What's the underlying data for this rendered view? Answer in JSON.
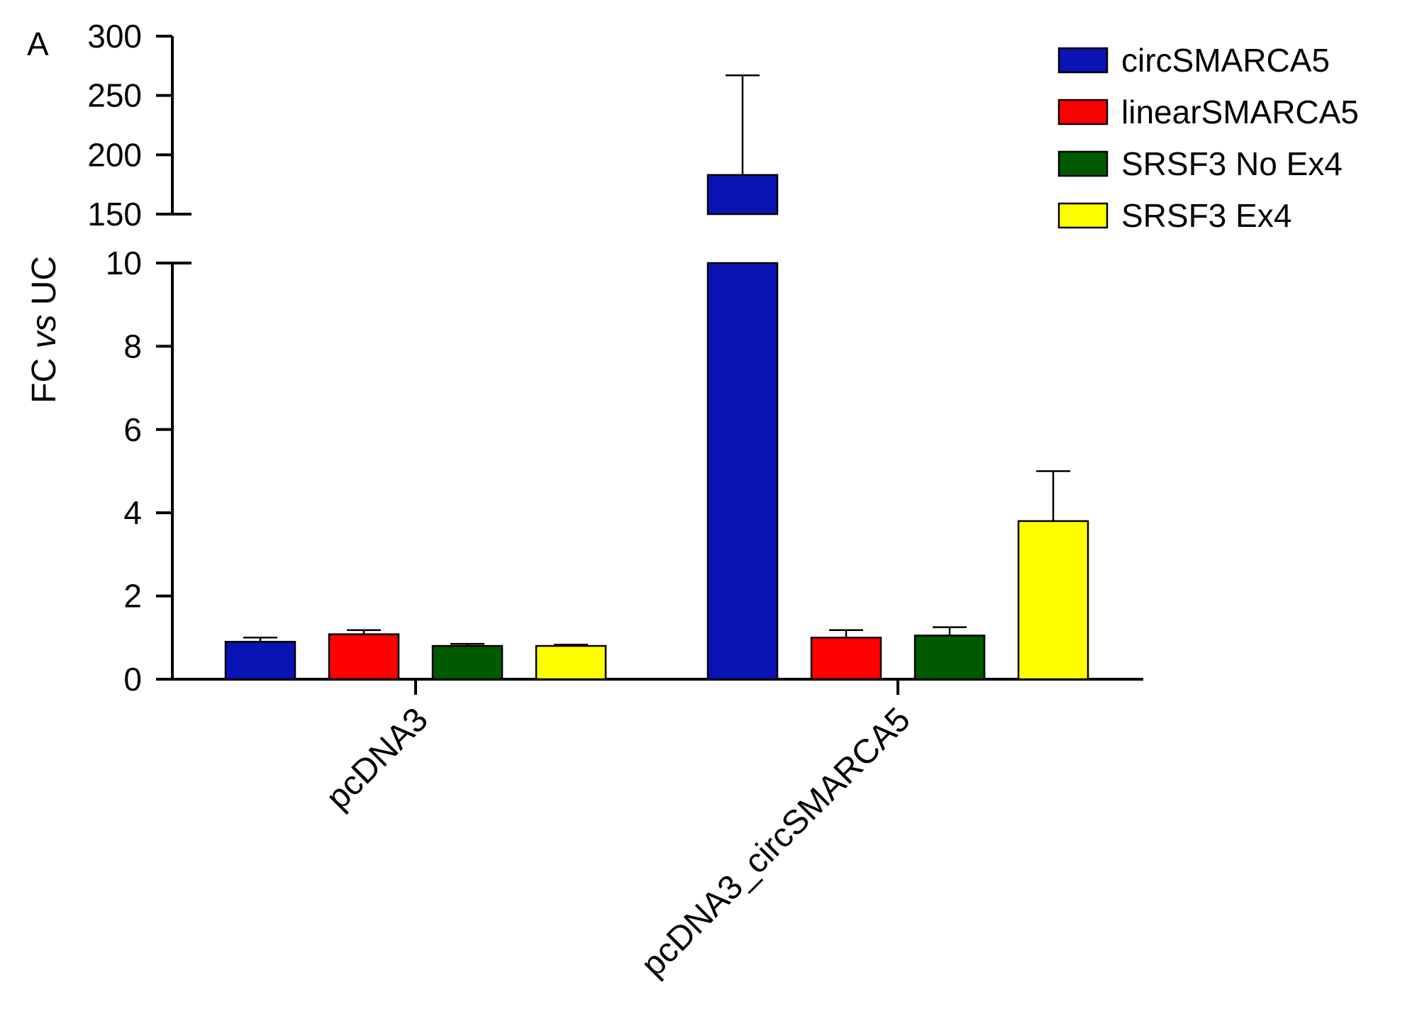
{
  "panel_label": "A",
  "colors": {
    "circSMARCA5": "#0a14b4",
    "linearSMARCA5": "#ff0000",
    "SRSF3 No Ex4": "#005a00",
    "SRSF3 Ex4": "#ffff00"
  },
  "chart_data": {
    "type": "bar",
    "title": "",
    "ylabel": "FC vs UC",
    "ylabel_parts": [
      "FC ",
      "vs",
      " UC"
    ],
    "xlabel": "",
    "categories": [
      "pcDNA3",
      "pcDNA3_circSMARCA5"
    ],
    "y_axis_break": {
      "lower_range": [
        0,
        10
      ],
      "lower_ticks": [
        "0",
        "2",
        "4",
        "6",
        "8",
        "10"
      ],
      "upper_range": [
        150,
        300
      ],
      "upper_ticks": [
        "150",
        "200",
        "250",
        "300"
      ]
    },
    "legend_position": "top-right",
    "grid": false,
    "series": [
      {
        "name": "circSMARCA5",
        "values": [
          0.9,
          183
        ],
        "errors": [
          0.1,
          84
        ]
      },
      {
        "name": "linearSMARCA5",
        "values": [
          1.08,
          1.0
        ],
        "errors": [
          0.1,
          0.18
        ]
      },
      {
        "name": "SRSF3 No Ex4",
        "values": [
          0.8,
          1.05
        ],
        "errors": [
          0.05,
          0.2
        ]
      },
      {
        "name": "SRSF3 Ex4",
        "values": [
          0.8,
          3.8
        ],
        "errors": [
          0.03,
          1.2
        ]
      }
    ]
  }
}
